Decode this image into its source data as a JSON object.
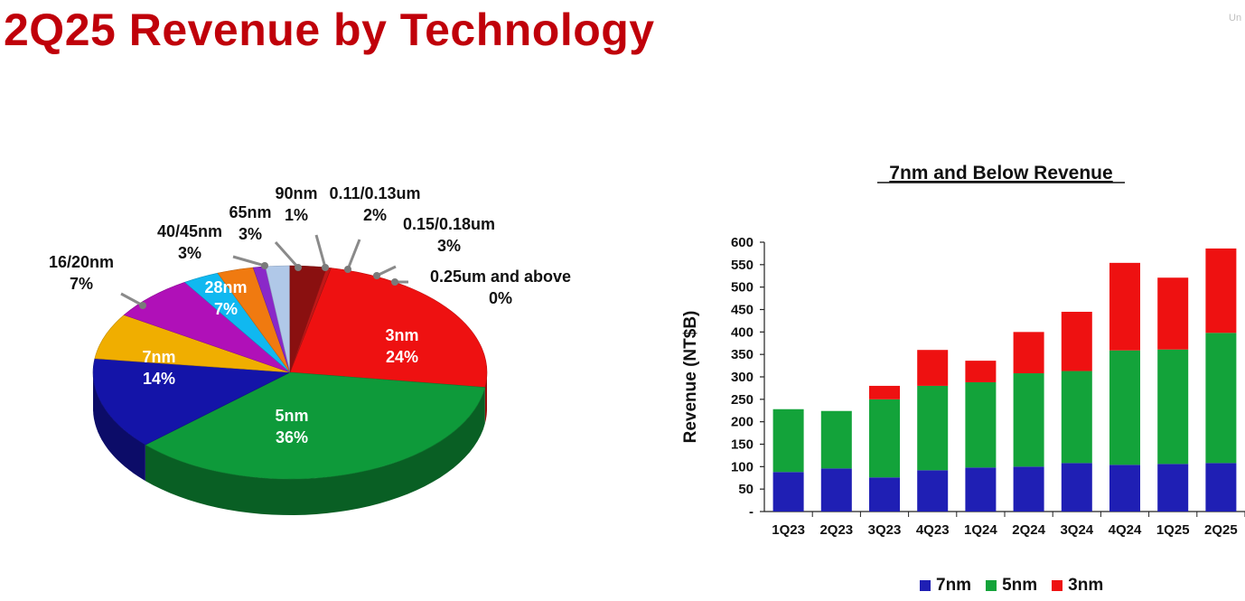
{
  "page": {
    "title": "2Q25 Revenue by Technology",
    "corner_text": "Un"
  },
  "chart_data": [
    {
      "type": "pie",
      "title": "",
      "slices": [
        {
          "label": "3nm",
          "value": 24,
          "display": "24%",
          "color": "#ee1111"
        },
        {
          "label": "5nm",
          "value": 36,
          "display": "36%",
          "color": "#0e9a3a"
        },
        {
          "label": "7nm",
          "value": 14,
          "display": "14%",
          "color": "#1414a8"
        },
        {
          "label": "16/20nm",
          "value": 7,
          "display": "7%",
          "color": "#f0ae00"
        },
        {
          "label": "28nm",
          "value": 7,
          "display": "7%",
          "color": "#b010b8"
        },
        {
          "label": "40/45nm",
          "value": 3,
          "display": "3%",
          "color": "#10b8f0"
        },
        {
          "label": "65nm",
          "value": 3,
          "display": "3%",
          "color": "#f07a10"
        },
        {
          "label": "90nm",
          "value": 1,
          "display": "1%",
          "color": "#8a28c8"
        },
        {
          "label": "0.11/0.13um",
          "value": 2,
          "display": "2%",
          "color": "#b0c8e8"
        },
        {
          "label": "0.15/0.18um",
          "value": 3,
          "display": "3%",
          "color": "#8a1010"
        },
        {
          "label": "0.25um and above",
          "value": 0,
          "display": "0%",
          "color": "#c01818"
        }
      ]
    },
    {
      "type": "bar",
      "stacked": true,
      "title": "7nm and Below Revenue",
      "ylabel": "Revenue (NT$B)",
      "xlabel": "",
      "ylim": [
        0,
        600
      ],
      "yticks": [
        "-",
        "50",
        "100",
        "150",
        "200",
        "250",
        "300",
        "350",
        "400",
        "450",
        "500",
        "550",
        "600"
      ],
      "categories": [
        "1Q23",
        "2Q23",
        "3Q23",
        "4Q23",
        "1Q24",
        "2Q24",
        "3Q24",
        "4Q24",
        "1Q25",
        "2Q25"
      ],
      "series": [
        {
          "name": "7nm",
          "color": "#1f1fb4",
          "values": [
            88,
            96,
            76,
            92,
            98,
            100,
            108,
            104,
            106,
            108
          ]
        },
        {
          "name": "5nm",
          "color": "#13a33a",
          "values": [
            140,
            128,
            174,
            188,
            190,
            208,
            205,
            255,
            255,
            290
          ]
        },
        {
          "name": "3nm",
          "color": "#ee1111",
          "values": [
            0,
            0,
            30,
            80,
            48,
            92,
            132,
            195,
            160,
            188
          ]
        }
      ],
      "legend_position": "bottom"
    }
  ]
}
